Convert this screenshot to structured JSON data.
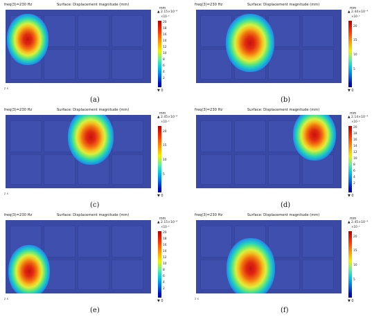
{
  "panels": [
    {
      "freq": "freq(3)=230 Hz",
      "surface": "Surface: Displacement magnitude (mm)",
      "unit": "mm",
      "max": "▲ 2.15×10⁻⁴",
      "exponent": "×10⁻⁵",
      "ticks": [
        "20",
        "18",
        "16",
        "14",
        "12",
        "10",
        "8",
        "6",
        "4",
        "2"
      ],
      "min": "▼ 0",
      "axis": "z  x",
      "label": "(a)"
    },
    {
      "freq": "freq(3)=230 Hz",
      "surface": "Surface: Displacement magnitude (mm)",
      "unit": "mm",
      "max": "▲ 2.44×10⁻⁴",
      "exponent": "×10⁻⁵",
      "ticks": [
        "20",
        "15",
        "10",
        "5"
      ],
      "min": "▼ 0",
      "axis": "z  x",
      "label": "(b)"
    },
    {
      "freq": "freq(3)=230 Hz",
      "surface": "Surface: Displacement magnitude (mm)",
      "unit": "mm",
      "max": "▲ 2.45×10⁻⁴",
      "exponent": "×10⁻⁵",
      "ticks": [
        "20",
        "15",
        "10",
        "5"
      ],
      "min": "▼ 0",
      "axis": "z  x",
      "label": "(c)"
    },
    {
      "freq": "freq(3)=230 Hz",
      "surface": "Surface: Displacement magnitude (mm)",
      "unit": "mm",
      "max": "▲ 2.14×10⁻⁴",
      "exponent": "×10⁻⁵",
      "ticks": [
        "20",
        "18",
        "16",
        "14",
        "12",
        "10",
        "8",
        "6",
        "4",
        "2"
      ],
      "min": "▼ 0",
      "axis": "z  x",
      "label": "(d)"
    },
    {
      "freq": "freq(3)=230 Hz",
      "surface": "Surface: Displacement magnitude (mm)",
      "unit": "mm",
      "max": "▲ 2.15×10⁻⁴",
      "exponent": "×10⁻⁵",
      "ticks": [
        "20",
        "18",
        "16",
        "14",
        "12",
        "10",
        "8",
        "6",
        "4",
        "2"
      ],
      "min": "▼ 0",
      "axis": "z  x",
      "label": "(e)"
    },
    {
      "freq": "freq(3)=230 Hz",
      "surface": "Surface: Displacement magnitude (mm)",
      "unit": "mm",
      "max": "▲ 2.45×10⁻⁴",
      "exponent": "×10⁻⁵",
      "ticks": [
        "20",
        "15",
        "10",
        "5"
      ],
      "min": "▼ 0",
      "axis": "z  x",
      "label": "(f)"
    }
  ]
}
